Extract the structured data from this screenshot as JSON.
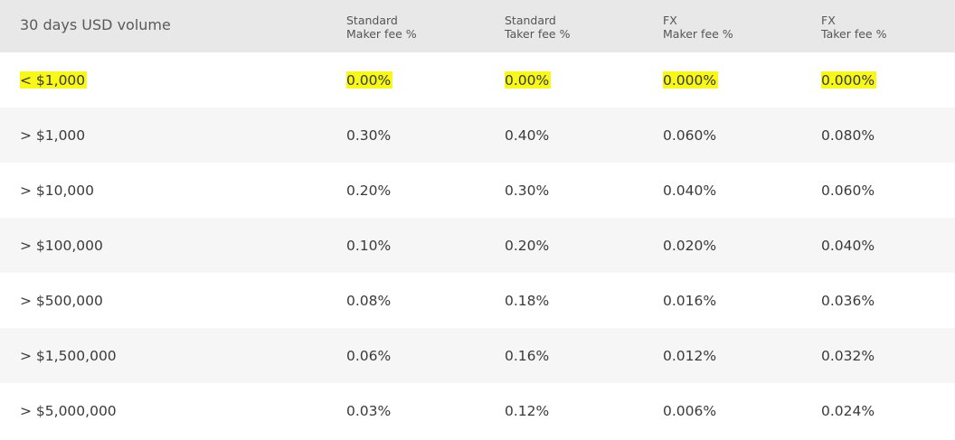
{
  "table": {
    "headers": {
      "volume": "30 days USD volume",
      "std_maker": [
        "Standard",
        "Maker fee %"
      ],
      "std_taker": [
        "Standard",
        "Taker fee %"
      ],
      "fx_maker": [
        "FX",
        "Maker fee %"
      ],
      "fx_taker": [
        "FX",
        "Taker fee %"
      ]
    },
    "rows": [
      {
        "volume": "< $1,000",
        "std_maker": "0.00%",
        "std_taker": "0.00%",
        "fx_maker": "0.000%",
        "fx_taker": "0.000%",
        "highlighted": true
      },
      {
        "volume": "> $1,000",
        "std_maker": "0.30%",
        "std_taker": "0.40%",
        "fx_maker": "0.060%",
        "fx_taker": "0.080%"
      },
      {
        "volume": "> $10,000",
        "std_maker": "0.20%",
        "std_taker": "0.30%",
        "fx_maker": "0.040%",
        "fx_taker": "0.060%"
      },
      {
        "volume": "> $100,000",
        "std_maker": "0.10%",
        "std_taker": "0.20%",
        "fx_maker": "0.020%",
        "fx_taker": "0.040%"
      },
      {
        "volume": "> $500,000",
        "std_maker": "0.08%",
        "std_taker": "0.18%",
        "fx_maker": "0.016%",
        "fx_taker": "0.036%"
      },
      {
        "volume": "> $1,500,000",
        "std_maker": "0.06%",
        "std_taker": "0.16%",
        "fx_maker": "0.012%",
        "fx_taker": "0.032%"
      },
      {
        "volume": "> $5,000,000",
        "std_maker": "0.03%",
        "std_taker": "0.12%",
        "fx_maker": "0.006%",
        "fx_taker": "0.024%"
      }
    ],
    "colors": {
      "header_bg": "#e8e8e8",
      "row_alt_bg": "#f6f6f6",
      "highlight": "#f7f719"
    }
  }
}
